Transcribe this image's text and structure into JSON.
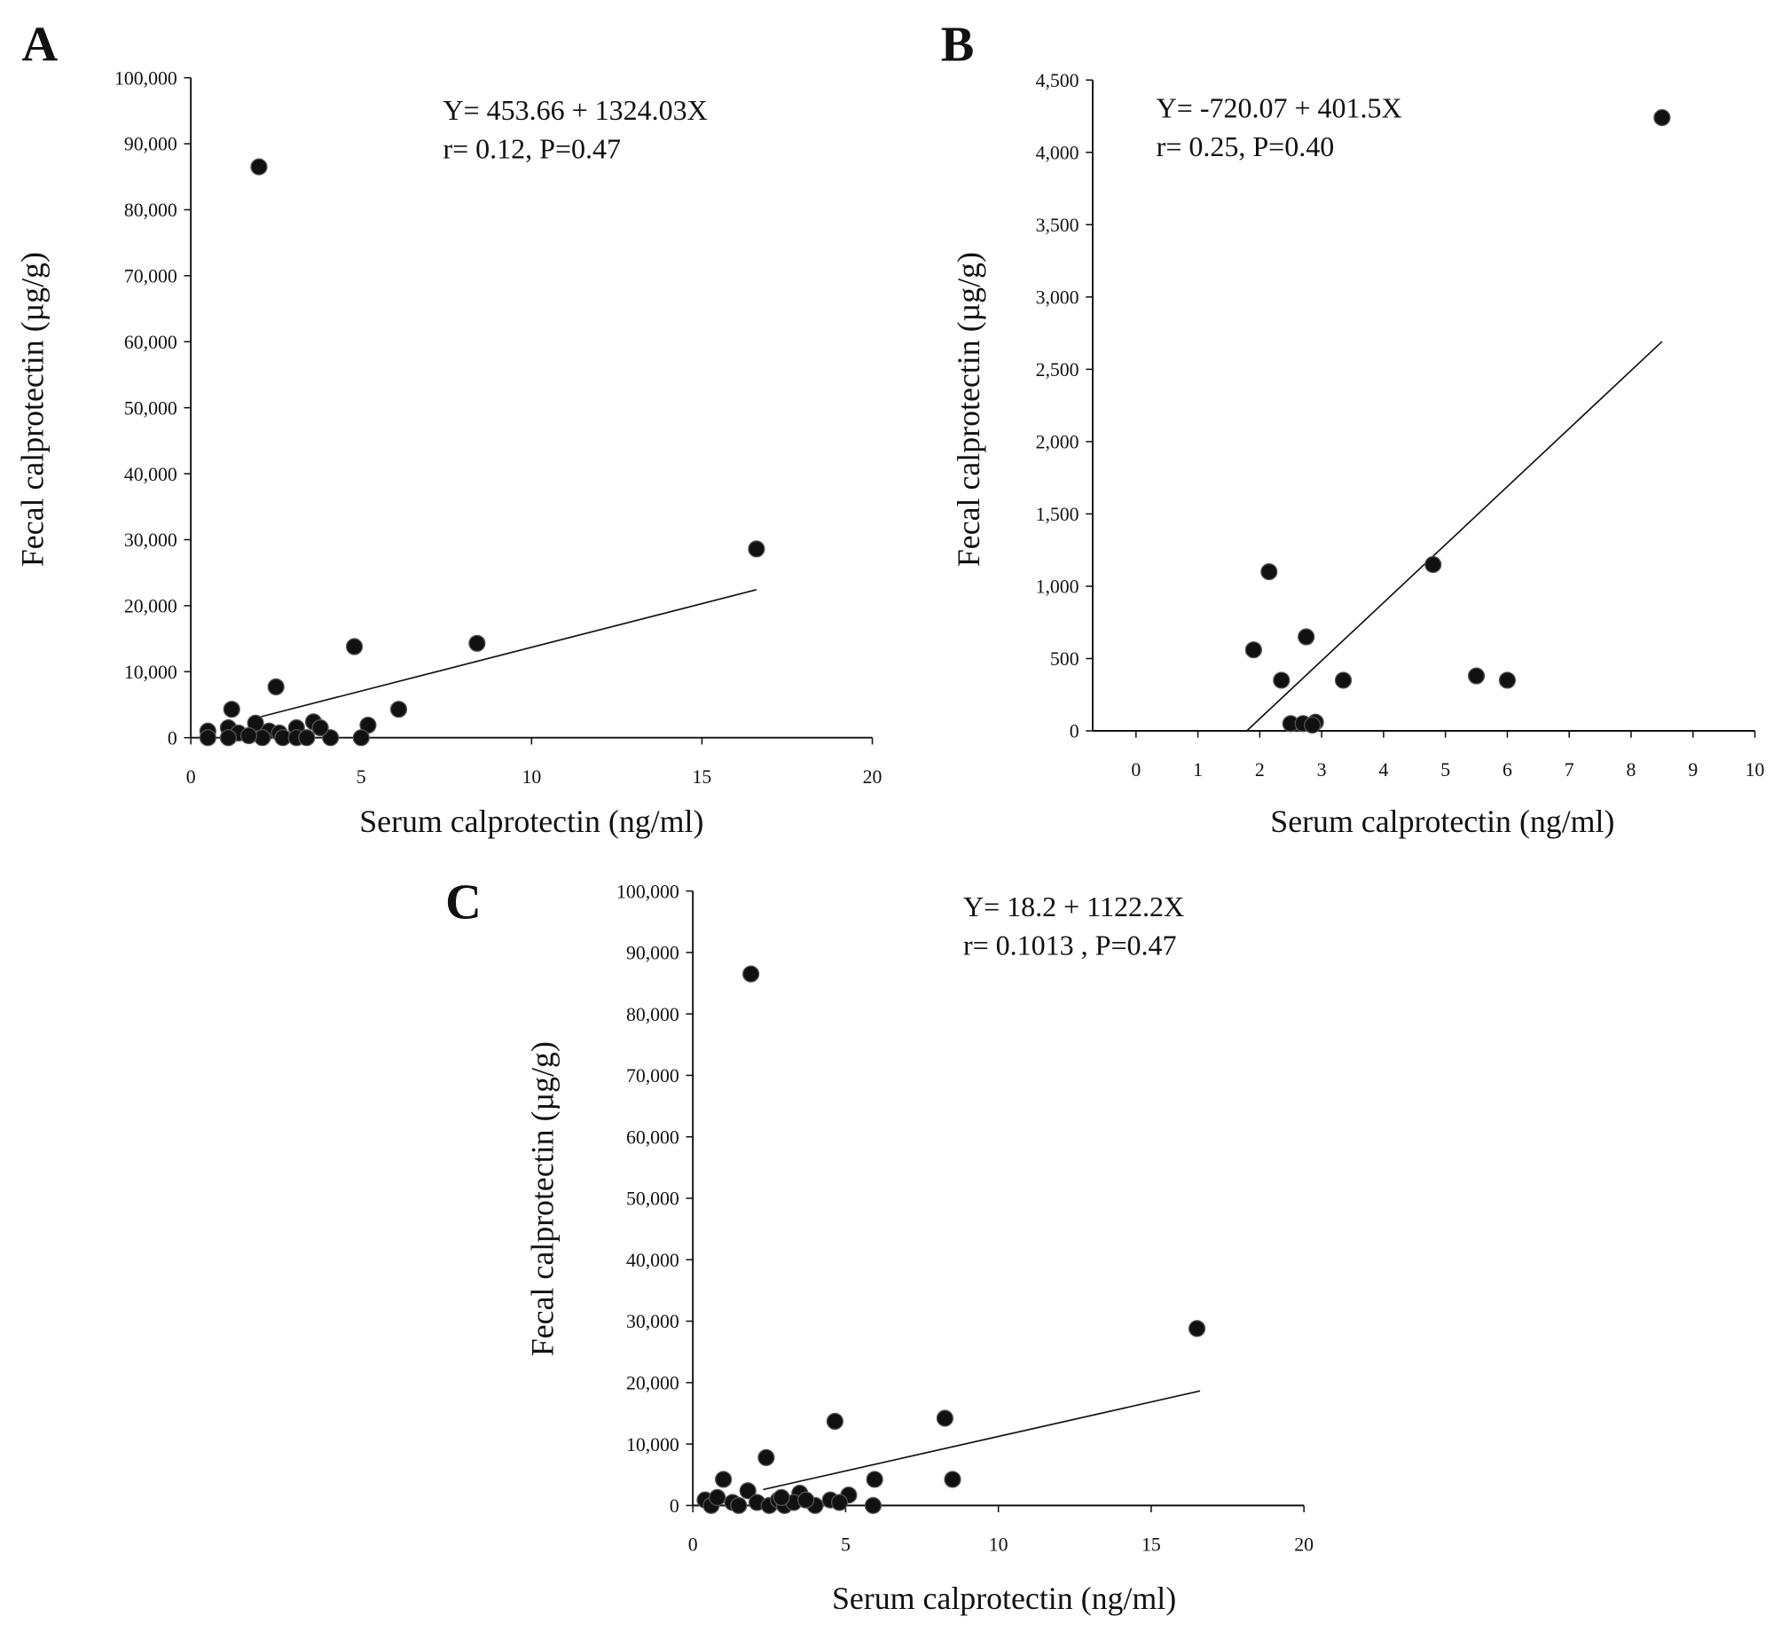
{
  "chart_data": [
    {
      "type": "scatter",
      "panel_label": "A",
      "annotations": [
        "Y= 453.66 + 1324.03X",
        "r= 0.12, P=0.47"
      ],
      "x_label": "Serum calprotectin (ng/ml)",
      "y_label": "Fecal calprotectin (µg/g)",
      "xlim": [
        0,
        20
      ],
      "ylim": [
        0,
        100000
      ],
      "xticks": [
        0,
        5,
        10,
        15,
        20
      ],
      "yticks": [
        0,
        {
          "value": 10000,
          "label": "10,000"
        },
        {
          "value": 20000,
          "label": "20,000"
        },
        {
          "value": 30000,
          "label": "30,000"
        },
        {
          "value": 40000,
          "label": "40,000"
        },
        {
          "value": 50000,
          "label": "50,000"
        },
        {
          "value": 60000,
          "label": "60,000"
        },
        {
          "value": 70000,
          "label": "70,000"
        },
        {
          "value": 80000,
          "label": "80,000"
        },
        {
          "value": 90000,
          "label": "90,000"
        },
        {
          "value": 100000,
          "label": "100,000"
        }
      ],
      "color": "#111111",
      "x": [
        2.0,
        16.6,
        8.4,
        4.8,
        2.5,
        6.1,
        1.2,
        5.2,
        3.6,
        1.9,
        0.5,
        1.1,
        3.1,
        4.1,
        5.0,
        1.4,
        2.3,
        2.6,
        2.7,
        3.1,
        3.4,
        3.8,
        0.5,
        1.1,
        2.1,
        1.7
      ],
      "values": [
        86500,
        28600,
        14300,
        13800,
        7700,
        4300,
        4300,
        1900,
        2400,
        2200,
        1000,
        1500,
        1500,
        0,
        0,
        700,
        1000,
        700,
        0,
        0,
        0,
        1500,
        0,
        0,
        0,
        300
      ],
      "fit_line": {
        "x": [
          2.0,
          16.6
        ],
        "y": [
          3101,
          22433
        ]
      },
      "grid": false
    },
    {
      "type": "scatter",
      "panel_label": "B",
      "annotations": [
        "Y= -720.07 + 401.5X",
        "r= 0.25, P=0.40"
      ],
      "x_label": "Serum calprotectin (ng/ml)",
      "y_label": "Fecal calprotectin (µg/g)",
      "xlim": [
        -0.7,
        10
      ],
      "ylim": [
        0,
        4500
      ],
      "xticks": [
        0,
        1,
        2,
        3,
        4,
        5,
        6,
        7,
        8,
        9,
        10
      ],
      "yticks": [
        0,
        500,
        {
          "value": 1000,
          "label": "1,000"
        },
        {
          "value": 1500,
          "label": "1,500"
        },
        {
          "value": 2000,
          "label": "2,000"
        },
        {
          "value": 2500,
          "label": "2,500"
        },
        {
          "value": 3000,
          "label": "3,000"
        },
        {
          "value": 3500,
          "label": "3,500"
        },
        {
          "value": 4000,
          "label": "4,000"
        },
        {
          "value": 4500,
          "label": "4,500"
        }
      ],
      "color": "#111111",
      "x": [
        1.9,
        2.15,
        2.35,
        2.75,
        2.5,
        2.7,
        2.9,
        2.85,
        3.35,
        4.8,
        5.5,
        6.0,
        8.5
      ],
      "values": [
        560,
        1100,
        350,
        650,
        50,
        50,
        60,
        40,
        350,
        1150,
        380,
        350,
        4240
      ],
      "fit_line": {
        "x": [
          1.79,
          8.5
        ],
        "y": [
          0,
          2692
        ]
      },
      "grid": false
    },
    {
      "type": "scatter",
      "panel_label": "C",
      "annotations": [
        "Y= 18.2 + 1122.2X",
        "r= 0.1013 , P=0.47"
      ],
      "x_label": "Serum calprotectin (ng/ml)",
      "y_label": "Fecal calprotectin (µg/g)",
      "xlim": [
        0,
        20
      ],
      "ylim": [
        0,
        100000
      ],
      "xticks": [
        0,
        5,
        10,
        15,
        20
      ],
      "yticks": [
        0,
        {
          "value": 10000,
          "label": "10,000"
        },
        {
          "value": 20000,
          "label": "20,000"
        },
        {
          "value": 30000,
          "label": "30,000"
        },
        {
          "value": 40000,
          "label": "40,000"
        },
        {
          "value": 50000,
          "label": "50,000"
        },
        {
          "value": 60000,
          "label": "60,000"
        },
        {
          "value": 70000,
          "label": "70,000"
        },
        {
          "value": 80000,
          "label": "80,000"
        },
        {
          "value": 90000,
          "label": "90,000"
        },
        {
          "value": 100000,
          "label": "100,000"
        }
      ],
      "color": "#111111",
      "x": [
        1.9,
        16.5,
        8.25,
        4.65,
        2.4,
        5.95,
        8.5,
        1.0,
        1.8,
        3.5,
        5.1,
        4.5,
        4.0,
        5.9,
        4.8,
        0.4,
        0.6,
        0.8,
        1.3,
        1.5,
        2.1,
        2.5,
        2.8,
        3.0,
        3.3,
        3.7,
        2.9
      ],
      "values": [
        86500,
        28800,
        14200,
        13700,
        7800,
        4250,
        4250,
        4250,
        2400,
        2000,
        1700,
        900,
        0,
        0,
        500,
        900,
        0,
        1300,
        500,
        0,
        500,
        0,
        900,
        0,
        500,
        900,
        1300
      ],
      "fit_line": {
        "x": [
          2.3,
          16.6
        ],
        "y": [
          2599,
          18647
        ]
      },
      "grid": false
    }
  ]
}
